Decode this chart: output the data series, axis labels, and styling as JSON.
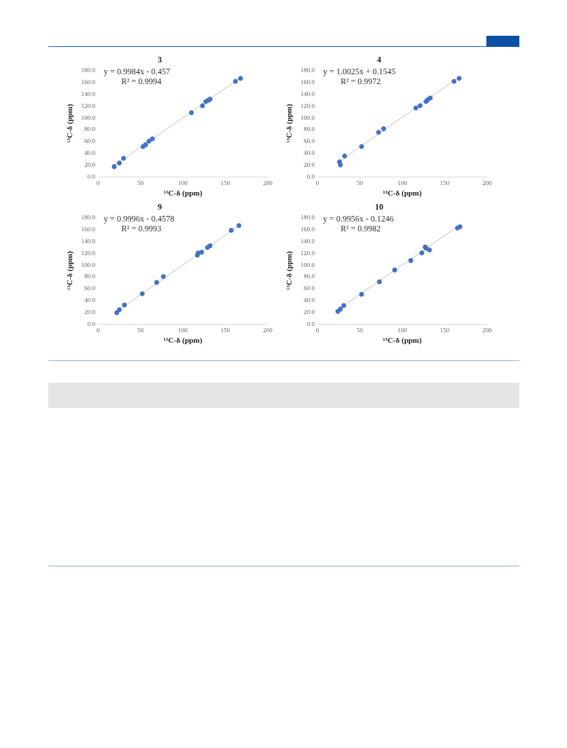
{
  "chart_data": [
    {
      "type": "scatter",
      "title": "3",
      "xlabel": "¹³C-δ (ppm)",
      "ylabel": "¹³C-δ (ppm)",
      "annotations": [
        "y = 0.9984x - 0.457",
        "R² = 0.9994"
      ],
      "xlim": [
        0,
        200
      ],
      "xticks": [
        0,
        50,
        100,
        150,
        200
      ],
      "ylim": [
        0,
        180
      ],
      "yticks": [
        {
          "value": 0,
          "label": "0.0"
        },
        {
          "value": 20,
          "label": "20.0"
        },
        {
          "value": 40,
          "label": "40.0"
        },
        {
          "value": 60,
          "label": "60.0"
        },
        {
          "value": 80,
          "label": "80.0"
        },
        {
          "value": 100,
          "label": "100.0"
        },
        {
          "value": 120,
          "label": "120.0"
        },
        {
          "value": 140,
          "label": "140.0"
        },
        {
          "value": 160,
          "label": "160.0"
        },
        {
          "value": 180,
          "label": "180.0"
        }
      ],
      "marker": "circle",
      "series": [
        {
          "color": "#4472c4",
          "x": [
            19,
            25,
            30,
            53,
            56,
            60,
            64,
            110,
            123,
            127,
            130,
            132,
            162,
            168
          ],
          "values": [
            17,
            23,
            31,
            51,
            54,
            60,
            64,
            108,
            120,
            127,
            129,
            131,
            161,
            166
          ]
        },
        {
          "type": "line",
          "marker": "none",
          "color": "#bfbfbf",
          "line_style": "solid",
          "x": [
            19,
            168
          ],
          "values": [
            19,
            167
          ]
        }
      ]
    },
    {
      "type": "scatter",
      "title": "4",
      "xlabel": "¹³C-δ (ppm)",
      "ylabel": "¹³C-δ (ppm)",
      "annotations": [
        "y = 1.0025x + 0.1545",
        "R² = 0.9972"
      ],
      "xlim": [
        0,
        200
      ],
      "xticks": [
        0,
        50,
        100,
        150,
        200
      ],
      "ylim": [
        0,
        180
      ],
      "yticks": [
        {
          "value": 0,
          "label": "0.0"
        },
        {
          "value": 20,
          "label": "20.0"
        },
        {
          "value": 40,
          "label": "40.0"
        },
        {
          "value": 60,
          "label": "60.0"
        },
        {
          "value": 80,
          "label": "80.0"
        },
        {
          "value": 100,
          "label": "100.0"
        },
        {
          "value": 120,
          "label": "120.0"
        },
        {
          "value": 140,
          "label": "140.0"
        },
        {
          "value": 160,
          "label": "160.0"
        },
        {
          "value": 180,
          "label": "180.0"
        }
      ],
      "marker": "circle",
      "series": [
        {
          "color": "#4472c4",
          "x": [
            26,
            27,
            32,
            52,
            72,
            78,
            116,
            121,
            128,
            130,
            133,
            161,
            167
          ],
          "values": [
            25,
            20,
            35,
            51,
            75,
            81,
            116,
            120,
            127,
            130,
            133,
            161,
            166
          ]
        },
        {
          "type": "line",
          "marker": "none",
          "color": "#bfbfbf",
          "line_style": "solid",
          "x": [
            26,
            167
          ],
          "values": [
            26,
            168
          ]
        }
      ]
    },
    {
      "type": "scatter",
      "title": "9",
      "xlabel": "¹³C-δ (ppm)",
      "ylabel": "¹³C-δ (ppm)",
      "annotations": [
        "y = 0.9996x - 0.4578",
        "R² = 0.9993"
      ],
      "xlim": [
        0,
        200
      ],
      "xticks": [
        0,
        50,
        100,
        150,
        200
      ],
      "ylim": [
        0,
        180
      ],
      "yticks": [
        {
          "value": 0,
          "label": "0.0"
        },
        {
          "value": 20,
          "label": "20.0"
        },
        {
          "value": 40,
          "label": "40.0"
        },
        {
          "value": 60,
          "label": "60.0"
        },
        {
          "value": 80,
          "label": "80.0"
        },
        {
          "value": 100,
          "label": "100.0"
        },
        {
          "value": 120,
          "label": "120.0"
        },
        {
          "value": 140,
          "label": "140.0"
        },
        {
          "value": 160,
          "label": "160.0"
        },
        {
          "value": 180,
          "label": "180.0"
        }
      ],
      "marker": "circle",
      "series": [
        {
          "color": "#4472c4",
          "x": [
            22,
            25,
            31,
            52,
            69,
            77,
            117,
            118,
            122,
            129,
            132,
            157,
            166
          ],
          "values": [
            19,
            24,
            32,
            51,
            70,
            80,
            116,
            120,
            121,
            129,
            132,
            158,
            166
          ]
        },
        {
          "type": "line",
          "marker": "none",
          "color": "#bfbfbf",
          "line_style": "solid",
          "x": [
            22,
            166
          ],
          "values": [
            21,
            166
          ]
        }
      ]
    },
    {
      "type": "scatter",
      "title": "10",
      "xlabel": "¹³C-δ (ppm)",
      "ylabel": "¹³C-δ (ppm)",
      "annotations": [
        "y = 0.9956x - 0.1246",
        "R² = 0.9982"
      ],
      "xlim": [
        0,
        200
      ],
      "xticks": [
        0,
        50,
        100,
        150,
        200
      ],
      "ylim": [
        0,
        180
      ],
      "yticks": [
        {
          "value": 0,
          "label": "0.0"
        },
        {
          "value": 20,
          "label": "20.0"
        },
        {
          "value": 40,
          "label": "40.0"
        },
        {
          "value": 60,
          "label": "60.0"
        },
        {
          "value": 80,
          "label": "80.0"
        },
        {
          "value": 100,
          "label": "100.0"
        },
        {
          "value": 120,
          "label": "120.0"
        },
        {
          "value": 140,
          "label": "140.0"
        },
        {
          "value": 160,
          "label": "160.0"
        },
        {
          "value": 180,
          "label": "180.0"
        }
      ],
      "marker": "circle",
      "series": [
        {
          "color": "#4472c4",
          "x": [
            24,
            27,
            31,
            52,
            73,
            91,
            110,
            123,
            127,
            128,
            132,
            165,
            168
          ],
          "values": [
            21,
            25,
            31,
            50,
            71,
            91,
            107,
            120,
            130,
            128,
            125,
            162,
            164
          ]
        },
        {
          "type": "line",
          "marker": "none",
          "color": "#bfbfbf",
          "line_style": "solid",
          "x": [
            24,
            168
          ],
          "values": [
            24,
            167
          ]
        }
      ]
    }
  ]
}
